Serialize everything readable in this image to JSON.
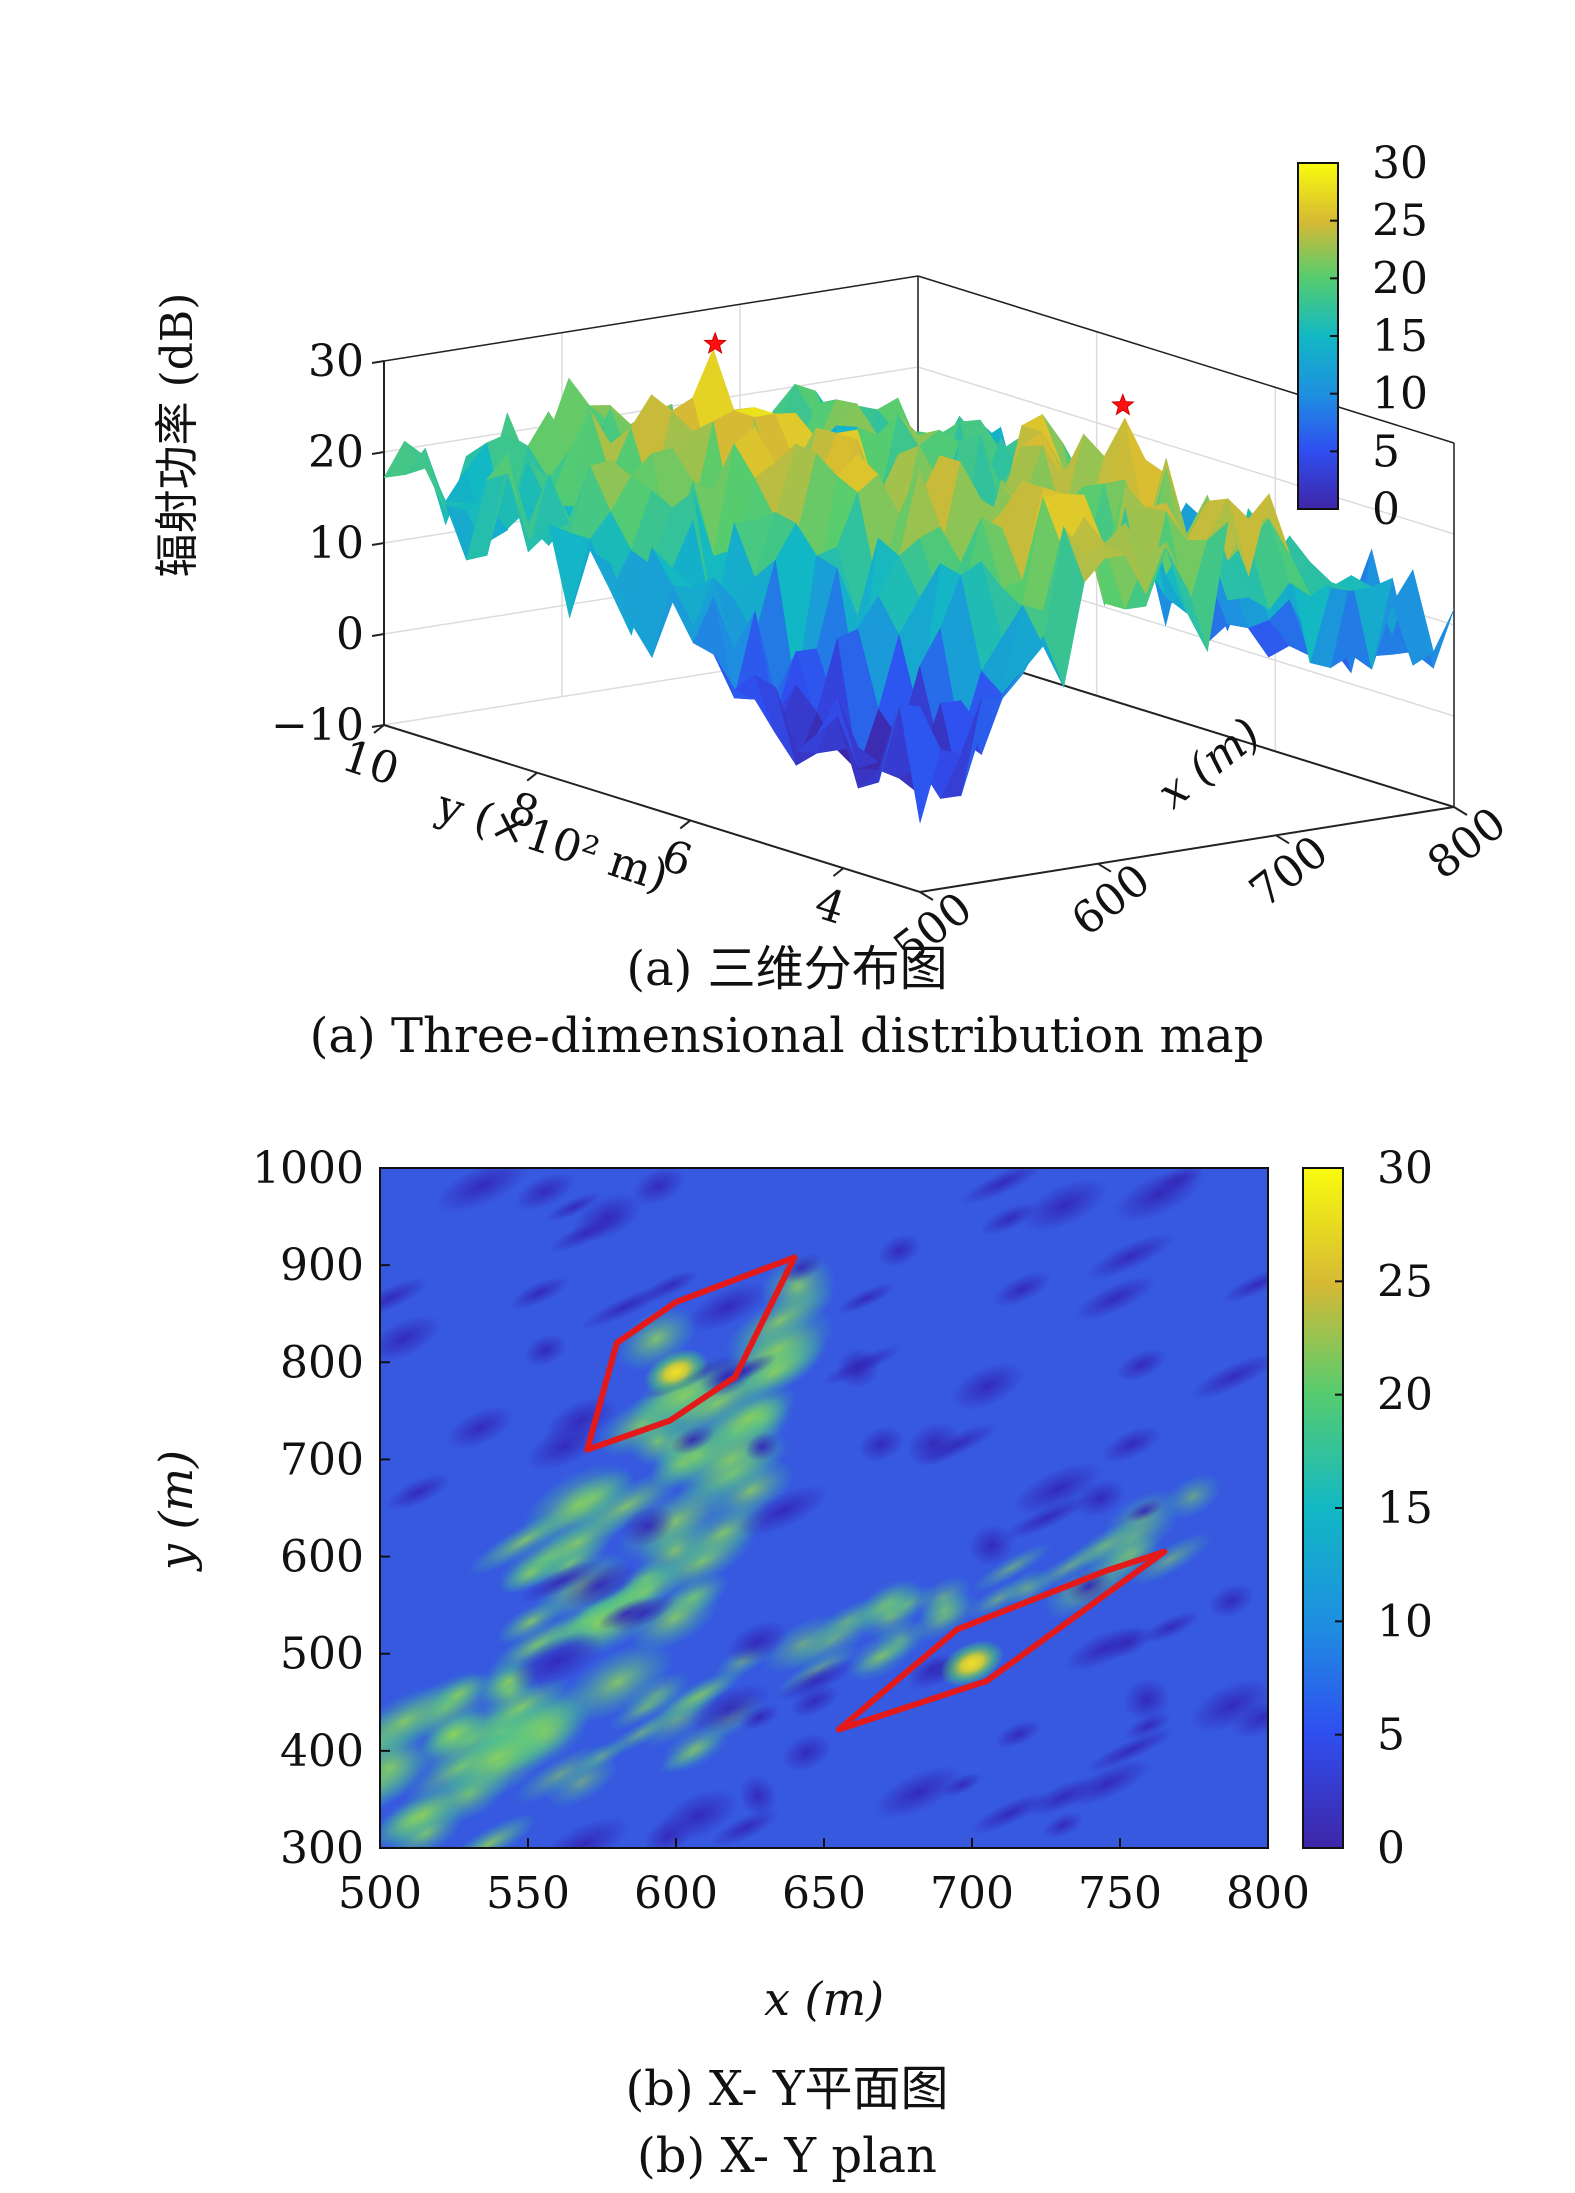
{
  "chart_data": [
    {
      "type": "surface",
      "ylabel_z": "辐射功率 (dB)",
      "xlabel": "x (m)",
      "ylabel": "y (×10² m)",
      "zticks": [
        "−10",
        "0",
        "10",
        "20",
        "30"
      ],
      "zlim": [
        -10,
        30
      ],
      "xticks": [
        "500",
        "600",
        "700",
        "800"
      ],
      "xlim": [
        500,
        800
      ],
      "yticks": [
        "4",
        "6",
        "8",
        "10"
      ],
      "ylim": [
        3,
        10
      ],
      "colorbar": {
        "ticks": [
          "0",
          "5",
          "10",
          "15",
          "20",
          "25",
          "30"
        ],
        "range": [
          0,
          30
        ]
      },
      "peaks": [
        {
          "x": 600,
          "y": 800,
          "z": 33
        },
        {
          "x": 700,
          "y": 500,
          "z": 31
        }
      ],
      "caption_cn": "(a) 三维分布图",
      "caption_en": "(a) Three-dimensional distribution map"
    },
    {
      "type": "heatmap",
      "xlabel": "x (m)",
      "ylabel": "y (m)",
      "xticks": [
        "500",
        "550",
        "600",
        "650",
        "700",
        "750",
        "800"
      ],
      "xlim": [
        500,
        800
      ],
      "yticks": [
        "300",
        "400",
        "500",
        "600",
        "700",
        "800",
        "900",
        "1000"
      ],
      "ylim": [
        300,
        1000
      ],
      "colorbar": {
        "ticks": [
          "0",
          "5",
          "10",
          "15",
          "20",
          "25",
          "30"
        ],
        "range": [
          0,
          30
        ]
      },
      "hotspots": [
        {
          "x": 600,
          "y": 790,
          "value": 26
        },
        {
          "x": 700,
          "y": 490,
          "value": 24
        }
      ],
      "regions": [
        {
          "points": [
            [
              570,
              710
            ],
            [
              598,
              740
            ],
            [
              620,
              785
            ],
            [
              640,
              908
            ],
            [
              600,
              862
            ],
            [
              580,
              820
            ]
          ]
        },
        {
          "points": [
            [
              655,
              422
            ],
            [
              705,
              472
            ],
            [
              765,
              605
            ],
            [
              745,
              585
            ],
            [
              695,
              525
            ]
          ]
        }
      ],
      "caption_cn": "(b) X- Y平面图",
      "caption_en": "(b) X- Y plan"
    }
  ]
}
